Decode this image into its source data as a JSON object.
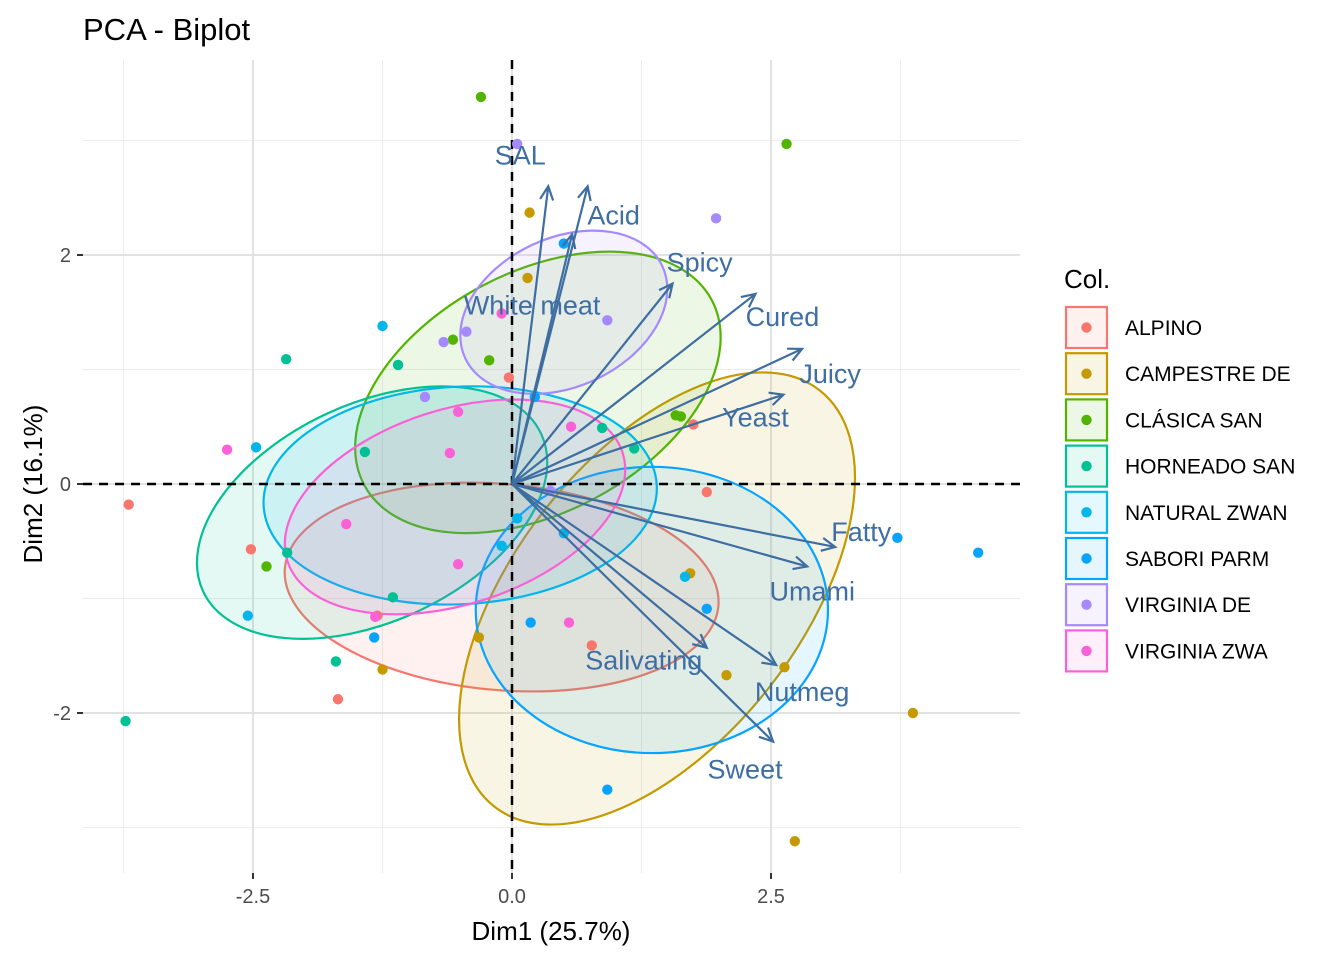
{
  "chart_data": {
    "type": "scatter",
    "title": "PCA - Biplot",
    "xlabel": "Dim1 (25.7%)",
    "ylabel": "Dim2 (16.1%)",
    "xlim": [
      -4.15,
      4.9
    ],
    "ylim": [
      -3.42,
      3.68
    ],
    "x_ticks": [
      -2.5,
      0.0,
      2.5
    ],
    "x_tick_labels": [
      "-2.5",
      "0.0",
      "2.5"
    ],
    "y_ticks": [
      -2,
      0,
      2
    ],
    "y_tick_labels": [
      "-2",
      "0",
      "2"
    ],
    "grid": true,
    "reference_lines": {
      "x": 0,
      "y": 0,
      "style": "dashed"
    },
    "legend": {
      "title": "Col.",
      "position": "right"
    },
    "arrow_color": "#3e6ea1",
    "series": [
      {
        "name": "ALPINO",
        "color": "#F8766D",
        "ellipse": {
          "cx": -0.1,
          "cy": -0.9,
          "rx": 2.1,
          "ry": 0.9,
          "angle": -5
        },
        "points": [
          [
            -3.7,
            -0.18
          ],
          [
            -2.52,
            -0.57
          ],
          [
            -1.68,
            -1.88
          ],
          [
            -0.03,
            0.93
          ],
          [
            0.77,
            -1.41
          ],
          [
            1.75,
            0.52
          ],
          [
            1.88,
            -0.07
          ],
          [
            -1.3,
            -1.15
          ]
        ]
      },
      {
        "name": "CAMPESTRE DE",
        "color": "#C49A00",
        "ellipse": {
          "cx": 1.4,
          "cy": -1.0,
          "rx": 2.55,
          "ry": 1.25,
          "angle": 52
        },
        "points": [
          [
            0.17,
            2.37
          ],
          [
            0.15,
            1.8
          ],
          [
            -0.32,
            -1.34
          ],
          [
            -1.25,
            -1.62
          ],
          [
            1.72,
            -0.78
          ],
          [
            2.07,
            -1.67
          ],
          [
            2.63,
            -1.6
          ],
          [
            3.87,
            -2.0
          ],
          [
            2.73,
            -3.12
          ]
        ]
      },
      {
        "name": "CLÁSICA SAN",
        "color": "#53B400",
        "ellipse": {
          "cx": 0.25,
          "cy": 0.8,
          "rx": 1.9,
          "ry": 1.05,
          "angle": 28
        },
        "points": [
          [
            -0.3,
            3.38
          ],
          [
            2.65,
            2.97
          ],
          [
            -0.57,
            1.26
          ],
          [
            -0.22,
            1.08
          ],
          [
            1.58,
            0.6
          ],
          [
            1.63,
            0.59
          ],
          [
            -2.37,
            -0.72
          ]
        ]
      },
      {
        "name": "HORNEADO SAN",
        "color": "#00C094",
        "ellipse": {
          "cx": -1.35,
          "cy": -0.25,
          "rx": 1.8,
          "ry": 0.95,
          "angle": 25
        },
        "points": [
          [
            -3.73,
            -2.07
          ],
          [
            -2.18,
            1.09
          ],
          [
            -1.1,
            1.04
          ],
          [
            -1.42,
            0.28
          ],
          [
            0.87,
            0.49
          ],
          [
            1.18,
            0.31
          ],
          [
            -2.17,
            -0.6
          ],
          [
            -1.15,
            -0.99
          ],
          [
            -1.7,
            -1.55
          ]
        ]
      },
      {
        "name": "NATURAL ZWAN",
        "color": "#00B6EB",
        "ellipse": {
          "cx": -0.5,
          "cy": -0.1,
          "rx": 1.9,
          "ry": 0.95,
          "angle": 3
        },
        "points": [
          [
            -1.25,
            1.38
          ],
          [
            -2.47,
            0.32
          ],
          [
            -2.55,
            -1.15
          ],
          [
            -0.1,
            -0.54
          ],
          [
            0.5,
            -0.43
          ],
          [
            1.67,
            -0.81
          ],
          [
            0.05,
            -0.3
          ]
        ]
      },
      {
        "name": "SABORI PARM",
        "color": "#06A4FF",
        "ellipse": {
          "cx": 1.35,
          "cy": -1.1,
          "rx": 1.7,
          "ry": 1.25,
          "angle": 0
        },
        "points": [
          [
            3.72,
            -0.47
          ],
          [
            4.5,
            -0.6
          ],
          [
            1.88,
            -1.09
          ],
          [
            0.18,
            -1.21
          ],
          [
            -1.33,
            -1.34
          ],
          [
            0.92,
            -2.67
          ],
          [
            0.5,
            2.1
          ],
          [
            0.22,
            0.76
          ]
        ]
      },
      {
        "name": "VIRGINIA DE",
        "color": "#A58AFF",
        "ellipse": {
          "cx": 0.5,
          "cy": 1.5,
          "rx": 1.05,
          "ry": 0.65,
          "angle": 25
        },
        "points": [
          [
            0.05,
            2.97
          ],
          [
            1.97,
            2.32
          ],
          [
            0.92,
            1.43
          ],
          [
            -0.44,
            1.33
          ],
          [
            -0.66,
            1.24
          ],
          [
            -0.84,
            0.76
          ],
          [
            0.37,
            -0.06
          ]
        ]
      },
      {
        "name": "VIRGINIA ZWA",
        "color": "#FB61D7",
        "ellipse": {
          "cx": -0.55,
          "cy": -0.2,
          "rx": 1.7,
          "ry": 0.85,
          "angle": 18
        },
        "points": [
          [
            -2.75,
            0.3
          ],
          [
            -1.6,
            -0.35
          ],
          [
            -1.32,
            -1.16
          ],
          [
            -0.1,
            1.49
          ],
          [
            -0.52,
            -0.7
          ],
          [
            0.57,
            0.5
          ],
          [
            0.55,
            -1.21
          ],
          [
            -0.6,
            0.27
          ],
          [
            -0.52,
            0.63
          ]
        ]
      }
    ],
    "variables": [
      {
        "name": "SAL",
        "x": 0.35,
        "y": 2.6
      },
      {
        "name": "Acid",
        "x": 0.73,
        "y": 2.6
      },
      {
        "name": "White meat",
        "x": 0.58,
        "y": 2.18
      },
      {
        "name": "Spicy",
        "x": 1.55,
        "y": 1.75
      },
      {
        "name": "Cured",
        "x": 2.35,
        "y": 1.66
      },
      {
        "name": "Juicy",
        "x": 2.8,
        "y": 1.18
      },
      {
        "name": "Yeast",
        "x": 2.62,
        "y": 0.78
      },
      {
        "name": "Fatty",
        "x": 3.12,
        "y": -0.55
      },
      {
        "name": "Umami",
        "x": 2.85,
        "y": -0.72
      },
      {
        "name": "Salivating",
        "x": 1.88,
        "y": -1.43
      },
      {
        "name": "Nutmeg",
        "x": 2.55,
        "y": -1.58
      },
      {
        "name": "Sweet",
        "x": 2.52,
        "y": -2.25
      }
    ]
  }
}
